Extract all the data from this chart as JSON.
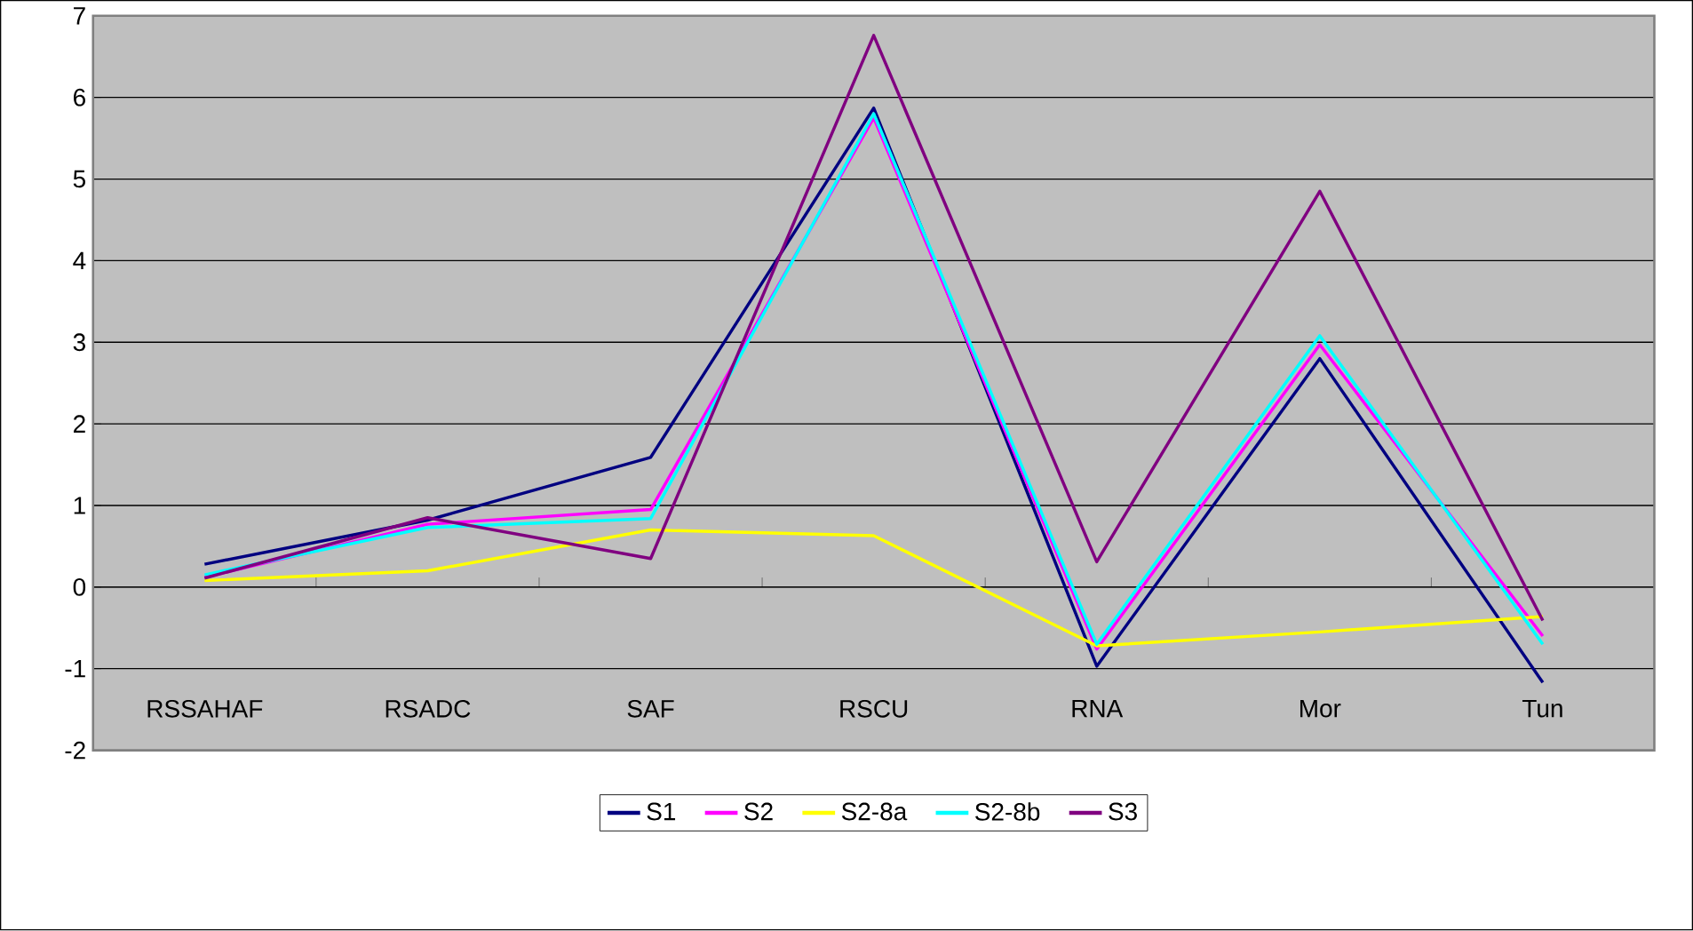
{
  "chart_data": {
    "type": "line",
    "categories": [
      "RSSAHAF",
      "RSADC",
      "SAF",
      "RSCU",
      "RNA",
      "Mor",
      "Tun"
    ],
    "series": [
      {
        "name": "S1",
        "color": "#000080",
        "values": [
          0.28,
          0.82,
          1.59,
          5.87,
          -0.97,
          2.8,
          -1.17
        ]
      },
      {
        "name": "S2",
        "color": "#ff00ff",
        "values": [
          0.12,
          0.77,
          0.95,
          5.75,
          -0.76,
          2.97,
          -0.6
        ]
      },
      {
        "name": "S2-8a",
        "color": "#ffff00",
        "values": [
          0.08,
          0.2,
          0.7,
          0.63,
          -0.72,
          -0.55,
          -0.36
        ]
      },
      {
        "name": "S2-8b",
        "color": "#00ffff",
        "values": [
          0.15,
          0.73,
          0.84,
          5.8,
          -0.7,
          3.08,
          -0.7
        ]
      },
      {
        "name": "S3",
        "color": "#800080",
        "values": [
          0.11,
          0.85,
          0.35,
          6.76,
          0.31,
          4.85,
          -0.41
        ]
      }
    ],
    "ylim": [
      -2,
      7
    ],
    "yticks": [
      -2,
      -1,
      0,
      1,
      2,
      3,
      4,
      5,
      6,
      7
    ],
    "grid": "y",
    "legend": "bottom",
    "marker": "none",
    "line_style": "solid"
  }
}
